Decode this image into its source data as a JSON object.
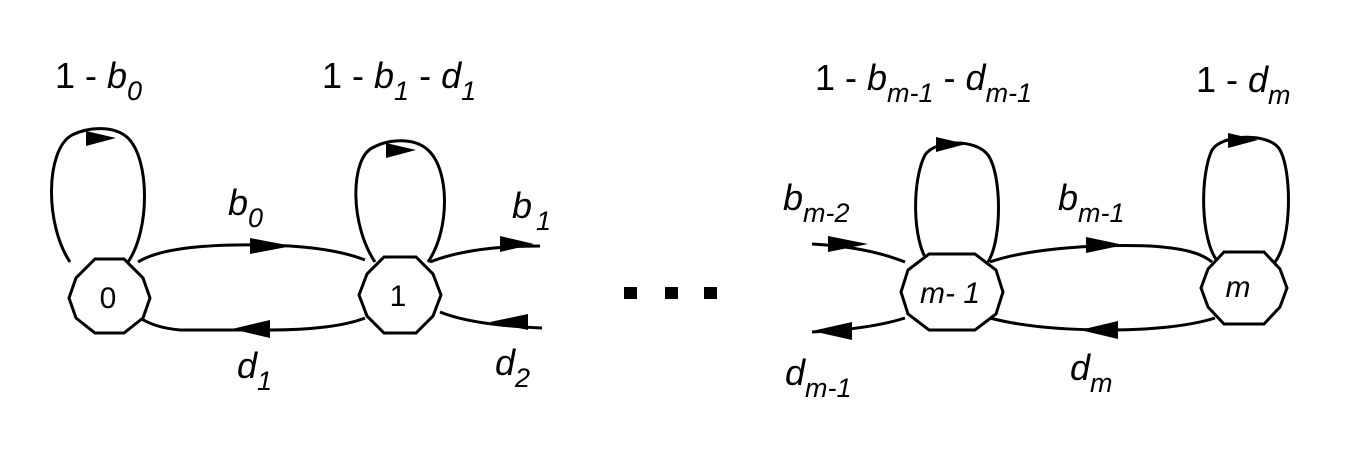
{
  "states": {
    "s0": "0",
    "s1": "1",
    "sm1": "m- 1",
    "sm": "m"
  },
  "ellipsis": "· · ·",
  "self_loops": {
    "s0": {
      "prefix": "1 - ",
      "var": "b",
      "sub": "0"
    },
    "s1": {
      "prefix": "1 - ",
      "var1": "b",
      "sub1": "1",
      "mid": " - ",
      "var2": "d",
      "sub2": "1"
    },
    "sm1": {
      "prefix": "1 - ",
      "var1": "b",
      "sub1": "m-1",
      "mid": " - ",
      "var2": "d",
      "sub2": "m-1"
    },
    "sm": {
      "prefix": "1 - ",
      "var": "d",
      "sub": "m"
    }
  },
  "transitions": {
    "b0": {
      "var": "b",
      "sub": "0"
    },
    "b1": {
      "var": "b",
      "sub": "1"
    },
    "d1": {
      "var": "d",
      "sub": "1"
    },
    "d2": {
      "var": "d",
      "sub": "2"
    },
    "bm2": {
      "var": "b",
      "sub": "m-2"
    },
    "bm1": {
      "var": "b",
      "sub": "m-1"
    },
    "dm1": {
      "var": "d",
      "sub": "m-1"
    },
    "dm": {
      "var": "d",
      "sub": "m"
    }
  }
}
